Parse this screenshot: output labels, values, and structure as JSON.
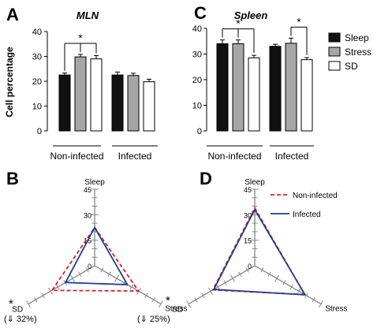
{
  "panels": {
    "A": {
      "letter": "A"
    },
    "B": {
      "letter": "B"
    },
    "C": {
      "letter": "C"
    },
    "D": {
      "letter": "D"
    }
  },
  "colors": {
    "sleep": "#111111",
    "stress": "#a6a6a6",
    "sd": "#ffffff",
    "non_infected": "#e02020",
    "infected": "#1f3e8f"
  },
  "chart_data": [
    {
      "id": "A",
      "type": "bar",
      "title": "MLN",
      "ylabel": "Cell percentage",
      "ylim": [
        0,
        40
      ],
      "yticks": [
        0,
        10,
        20,
        30,
        40
      ],
      "groups": [
        "Non-infected",
        "Infected"
      ],
      "series": [
        {
          "name": "Sleep",
          "values": [
            22.5,
            22.5
          ],
          "errors": [
            0.8,
            1.2
          ]
        },
        {
          "name": "Stress",
          "values": [
            29.8,
            22.3
          ],
          "errors": [
            1.0,
            0.9
          ]
        },
        {
          "name": "SD",
          "values": [
            29.0,
            19.8
          ],
          "errors": [
            1.3,
            1.0
          ]
        }
      ],
      "significance": [
        {
          "label": "*",
          "group": "Non-infected",
          "from": "Sleep",
          "to": [
            "Stress",
            "SD"
          ]
        }
      ]
    },
    {
      "id": "C",
      "type": "bar",
      "title": "Spleen",
      "ylim": [
        0,
        40
      ],
      "yticks": [
        0,
        10,
        20,
        30,
        40
      ],
      "groups": [
        "Non-infected",
        "Infected"
      ],
      "series": [
        {
          "name": "Sleep",
          "values": [
            34.0,
            33.0
          ],
          "errors": [
            1.5,
            0.8
          ]
        },
        {
          "name": "Stress",
          "values": [
            34.0,
            34.2
          ],
          "errors": [
            1.5,
            2.0
          ]
        },
        {
          "name": "SD",
          "values": [
            28.5,
            27.8
          ],
          "errors": [
            1.0,
            0.8
          ]
        }
      ],
      "legend": [
        "Sleep",
        "Stress",
        "SD"
      ],
      "significance": [
        {
          "label": "*",
          "group": "Non-infected",
          "from": "Sleep",
          "to": [
            "Stress",
            "SD"
          ]
        },
        {
          "label": "*",
          "group": "Infected",
          "from": "Stress",
          "to": [
            "SD"
          ]
        }
      ]
    },
    {
      "id": "B",
      "type": "radar",
      "axes": [
        "Sleep",
        "Stress",
        "SD"
      ],
      "rmax": 45,
      "ticks": [
        0,
        15,
        30,
        45
      ],
      "series": [
        {
          "name": "Non-infected",
          "values": [
            22.5,
            29.8,
            29.0
          ],
          "style": "dashed"
        },
        {
          "name": "Infected",
          "values": [
            22.5,
            22.3,
            19.8
          ],
          "style": "solid"
        }
      ],
      "annotations": {
        "stress_star": "*",
        "stress_change": "(⇓ 25%)",
        "sd_star": "*",
        "sd_change": "(⇓ 32%)"
      }
    },
    {
      "id": "D",
      "type": "radar",
      "axes": [
        "Sleep",
        "Stress",
        "SD"
      ],
      "rmax": 45,
      "ticks": [
        0,
        15,
        30,
        45
      ],
      "series": [
        {
          "name": "Non-infected",
          "values": [
            34.0,
            34.0,
            28.5
          ],
          "style": "dashed"
        },
        {
          "name": "Infected",
          "values": [
            33.0,
            34.2,
            27.8
          ],
          "style": "solid"
        }
      ],
      "legend": [
        "Non-infected",
        "Infected"
      ]
    }
  ]
}
